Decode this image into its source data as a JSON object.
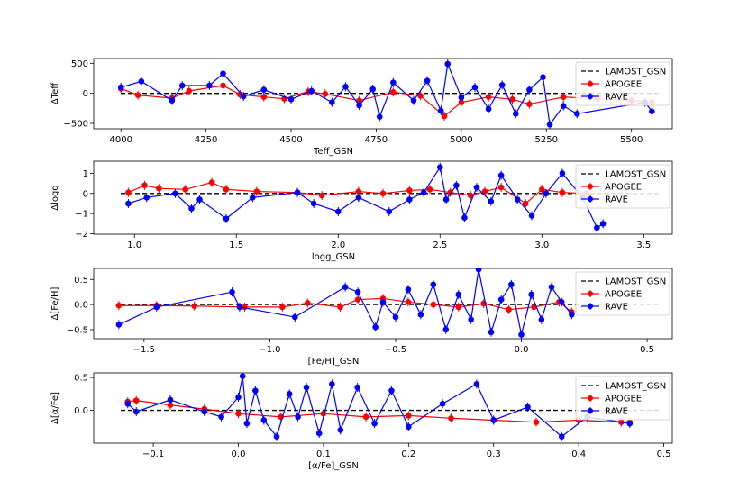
{
  "colors": {
    "lamost": "#000000",
    "apogee": "#ff0000",
    "rave": "#0000ff"
  },
  "legend": {
    "entries": [
      "LAMOST_GSN",
      "APOGEE",
      "RAVE"
    ],
    "placement": "top-right"
  },
  "chart_data": [
    {
      "type": "line",
      "xlabel": "Teff_GSN",
      "ylabel": "ΔTeff",
      "xlim": [
        3920,
        5620
      ],
      "ylim": [
        -590,
        580
      ],
      "xticks": [
        4000,
        4250,
        4500,
        4750,
        5000,
        5250,
        5500
      ],
      "xtick_labels": [
        "4000",
        "4250",
        "4500",
        "4750",
        "5000",
        "5250",
        "5500"
      ],
      "yticks": [
        -500,
        0,
        500
      ],
      "ytick_labels": [
        "−500",
        "0",
        "500"
      ],
      "reference": {
        "name": "LAMOST_GSN",
        "x": [
          3920,
          5620
        ],
        "y": [
          0,
          0
        ],
        "style": "dashed"
      },
      "series": [
        {
          "name": "APOGEE",
          "x": [
            4000,
            4050,
            4150,
            4200,
            4300,
            4350,
            4420,
            4480,
            4550,
            4600,
            4700,
            4800,
            4880,
            4950,
            5000,
            5080,
            5150,
            5200,
            5300,
            5400,
            5500,
            5560
          ],
          "y": [
            80,
            -30,
            -80,
            40,
            130,
            -20,
            -60,
            -90,
            30,
            -10,
            -120,
            20,
            -40,
            -380,
            -150,
            -60,
            -100,
            -180,
            -60,
            -90,
            -120,
            -150
          ]
        },
        {
          "name": "RAVE",
          "x": [
            4000,
            4060,
            4150,
            4180,
            4260,
            4300,
            4360,
            4420,
            4500,
            4560,
            4620,
            4660,
            4700,
            4740,
            4760,
            4800,
            4860,
            4900,
            4940,
            4960,
            5000,
            5040,
            5080,
            5120,
            5160,
            5200,
            5240,
            5260,
            5300,
            5340,
            5540,
            5560
          ],
          "y": [
            100,
            200,
            -120,
            130,
            130,
            330,
            -50,
            60,
            -100,
            40,
            -150,
            110,
            -200,
            70,
            -390,
            180,
            -120,
            210,
            -290,
            490,
            -70,
            100,
            -260,
            140,
            -340,
            60,
            270,
            -520,
            -210,
            -340,
            -150,
            -300
          ]
        }
      ]
    },
    {
      "type": "line",
      "xlabel": "logg_GSN",
      "ylabel": "Δlogg",
      "xlim": [
        0.8,
        3.64
      ],
      "ylim": [
        -2.02,
        1.6
      ],
      "xticks": [
        1.0,
        1.5,
        2.0,
        2.5,
        3.0,
        3.5
      ],
      "xtick_labels": [
        "1.0",
        "1.5",
        "2.0",
        "2.5",
        "3.0",
        "3.5"
      ],
      "yticks": [
        -2,
        -1,
        0,
        1
      ],
      "ytick_labels": [
        "−2",
        "−1",
        "0",
        "1"
      ],
      "reference": {
        "name": "LAMOST_GSN",
        "x": [
          0.8,
          3.64
        ],
        "y": [
          0,
          0
        ],
        "style": "dashed"
      },
      "series": [
        {
          "name": "APOGEE",
          "x": [
            0.97,
            1.05,
            1.12,
            1.25,
            1.38,
            1.45,
            1.6,
            1.8,
            1.92,
            2.1,
            2.22,
            2.35,
            2.45,
            2.55,
            2.65,
            2.72,
            2.8,
            2.92,
            3.0,
            3.1,
            3.22
          ],
          "y": [
            0.05,
            0.4,
            0.25,
            0.2,
            0.55,
            0.2,
            0.1,
            0.05,
            -0.1,
            0.1,
            0.0,
            0.15,
            0.2,
            0.05,
            -0.1,
            0.1,
            0.3,
            -0.5,
            0.2,
            0.05,
            0.0
          ]
        },
        {
          "name": "RAVE",
          "x": [
            0.97,
            1.06,
            1.2,
            1.28,
            1.32,
            1.45,
            1.58,
            1.8,
            1.88,
            2.0,
            2.1,
            2.25,
            2.35,
            2.42,
            2.5,
            2.53,
            2.58,
            2.62,
            2.68,
            2.75,
            2.8,
            2.88,
            2.95,
            3.02,
            3.1,
            3.2,
            3.27,
            3.3
          ],
          "y": [
            -0.5,
            -0.2,
            0.0,
            -0.75,
            -0.3,
            -1.25,
            -0.2,
            0.05,
            -0.5,
            -0.9,
            -0.2,
            -0.9,
            -0.3,
            0.05,
            1.3,
            -0.3,
            0.4,
            -1.2,
            0.3,
            -0.4,
            0.9,
            -0.3,
            -1.1,
            0.0,
            1.0,
            -0.2,
            -1.7,
            -1.5
          ]
        }
      ]
    },
    {
      "type": "line",
      "xlabel": "[Fe/H]_GSN",
      "ylabel": "Δ[Fe/H]",
      "xlim": [
        -1.7,
        0.6
      ],
      "ylim": [
        -0.68,
        0.72
      ],
      "xticks": [
        -1.5,
        -1.0,
        -0.5,
        0.0,
        0.5
      ],
      "xtick_labels": [
        "−1.5",
        "−1.0",
        "−0.5",
        "0.0",
        "0.5"
      ],
      "yticks": [
        -0.5,
        0.0,
        0.5
      ],
      "ytick_labels": [
        "−0.5",
        "0.0",
        "0.5"
      ],
      "reference": {
        "name": "LAMOST_GSN",
        "x": [
          -1.7,
          0.6
        ],
        "y": [
          0,
          0
        ],
        "style": "dashed"
      },
      "series": [
        {
          "name": "APOGEE",
          "x": [
            -1.6,
            -1.45,
            -1.3,
            -1.1,
            -0.95,
            -0.85,
            -0.72,
            -0.65,
            -0.55,
            -0.45,
            -0.35,
            -0.25,
            -0.15,
            -0.05,
            0.05,
            0.15,
            0.2
          ],
          "y": [
            -0.02,
            -0.02,
            -0.03,
            -0.05,
            -0.05,
            0.03,
            -0.05,
            0.1,
            0.12,
            0.05,
            0.0,
            -0.05,
            0.02,
            -0.1,
            -0.05,
            0.05,
            -0.15
          ]
        },
        {
          "name": "RAVE",
          "x": [
            -1.6,
            -1.45,
            -1.15,
            -1.12,
            -0.9,
            -0.7,
            -0.65,
            -0.58,
            -0.55,
            -0.5,
            -0.45,
            -0.4,
            -0.35,
            -0.3,
            -0.25,
            -0.2,
            -0.17,
            -0.12,
            -0.08,
            -0.04,
            0.0,
            0.04,
            0.08,
            0.12,
            0.16,
            0.2
          ],
          "y": [
            -0.4,
            -0.05,
            0.25,
            -0.05,
            -0.25,
            0.35,
            0.25,
            -0.45,
            0.05,
            -0.25,
            0.3,
            -0.2,
            0.4,
            -0.5,
            0.2,
            -0.3,
            0.7,
            -0.55,
            0.1,
            0.4,
            -0.6,
            0.2,
            -0.3,
            0.35,
            0.05,
            -0.2
          ]
        }
      ]
    },
    {
      "type": "line",
      "xlabel": "[α/Fe]_GSN",
      "ylabel": "Δ[α/Fe]",
      "xlim": [
        -0.17,
        0.51
      ],
      "ylim": [
        -0.5,
        0.57
      ],
      "xticks": [
        -0.1,
        0.0,
        0.1,
        0.2,
        0.3,
        0.4,
        0.5
      ],
      "xtick_labels": [
        "−0.1",
        "0.0",
        "0.1",
        "0.2",
        "0.3",
        "0.4",
        "0.5"
      ],
      "yticks": [
        0.0,
        0.5
      ],
      "ytick_labels": [
        "0.0",
        "0.5"
      ],
      "reference": {
        "name": "LAMOST_GSN",
        "x": [
          -0.17,
          0.51
        ],
        "y": [
          0,
          0
        ],
        "style": "dashed"
      },
      "series": [
        {
          "name": "APOGEE",
          "x": [
            -0.13,
            -0.12,
            -0.08,
            -0.04,
            0.0,
            0.05,
            0.1,
            0.15,
            0.2,
            0.25,
            0.3,
            0.35,
            0.4,
            0.45,
            0.46
          ],
          "y": [
            0.13,
            0.15,
            0.08,
            0.02,
            -0.05,
            -0.1,
            -0.05,
            -0.1,
            -0.08,
            -0.12,
            -0.15,
            -0.18,
            -0.15,
            -0.18,
            -0.18
          ]
        },
        {
          "name": "RAVE",
          "x": [
            -0.13,
            -0.12,
            -0.08,
            -0.04,
            -0.02,
            0.0,
            0.005,
            0.01,
            0.02,
            0.03,
            0.045,
            0.06,
            0.07,
            0.08,
            0.095,
            0.11,
            0.12,
            0.14,
            0.16,
            0.18,
            0.2,
            0.24,
            0.28,
            0.3,
            0.34,
            0.38,
            0.41,
            0.46
          ],
          "y": [
            0.1,
            -0.02,
            0.16,
            -0.02,
            -0.1,
            0.2,
            0.52,
            -0.2,
            0.3,
            -0.15,
            -0.4,
            0.25,
            -0.1,
            0.35,
            -0.35,
            0.4,
            -0.3,
            0.35,
            -0.2,
            0.3,
            -0.25,
            0.1,
            0.4,
            -0.15,
            0.05,
            -0.4,
            -0.1,
            -0.2
          ]
        }
      ]
    }
  ]
}
